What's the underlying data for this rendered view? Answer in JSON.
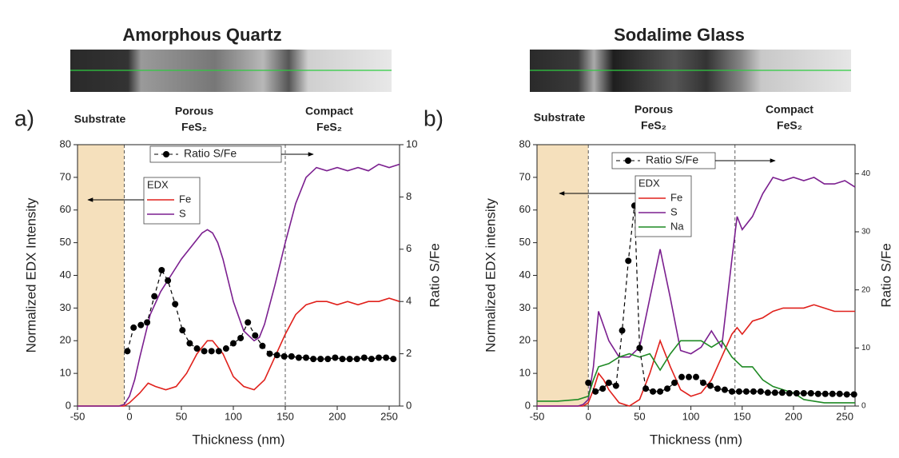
{
  "chart_data": [
    {
      "type": "line",
      "panel_label": "a)",
      "title": "Amorphous Quartz",
      "region_labels": [
        [
          "Substrate"
        ],
        [
          "Porous",
          "FeS₂"
        ],
        [
          "Compact",
          "FeS₂"
        ]
      ],
      "xlabel": "Thickness (nm)",
      "ylabel": "Normalized EDX Intensity",
      "y2label": "Ratio S/Fe",
      "xlim": [
        -50,
        260
      ],
      "ylim": [
        0,
        80
      ],
      "y2lim": [
        0,
        10
      ],
      "xticks": [
        -50,
        0,
        50,
        100,
        150,
        200,
        250
      ],
      "yticks": [
        0,
        10,
        20,
        30,
        40,
        50,
        60,
        70,
        80
      ],
      "y2ticks": [
        0,
        2,
        4,
        6,
        8,
        10
      ],
      "boundaries": [
        -5,
        150
      ],
      "substrate_color": "#f5e0bc",
      "legend_title": "EDX",
      "series": [
        {
          "name": "Fe",
          "color": "#e0201b",
          "x": [
            -50,
            -40,
            -30,
            -20,
            -10,
            -5,
            0,
            10,
            18,
            25,
            35,
            45,
            55,
            65,
            75,
            80,
            90,
            100,
            110,
            120,
            130,
            140,
            150,
            160,
            170,
            180,
            190,
            200,
            210,
            220,
            230,
            240,
            250,
            260
          ],
          "values": [
            0,
            0,
            0,
            0,
            0,
            0,
            1,
            4,
            7,
            6,
            5,
            6,
            10,
            16,
            20,
            20,
            16,
            9,
            6,
            5,
            8,
            15,
            22,
            28,
            31,
            32,
            32,
            31,
            32,
            31,
            32,
            32,
            33,
            32
          ]
        },
        {
          "name": "S",
          "color": "#7b1f8f",
          "x": [
            -50,
            -30,
            -10,
            -5,
            0,
            5,
            10,
            20,
            30,
            40,
            50,
            60,
            70,
            75,
            80,
            85,
            90,
            100,
            110,
            120,
            125,
            130,
            140,
            150,
            160,
            170,
            180,
            190,
            200,
            210,
            220,
            230,
            240,
            250,
            260
          ],
          "values": [
            0,
            0,
            0,
            0.5,
            3,
            8,
            15,
            28,
            35,
            40,
            45,
            49,
            53,
            54,
            53,
            50,
            45,
            32,
            23,
            20,
            21,
            25,
            37,
            50,
            62,
            70,
            73,
            72,
            73,
            72,
            73,
            72,
            74,
            73,
            74
          ]
        },
        {
          "name": "Ratio S/Fe",
          "color": "#000000",
          "axis": "y2",
          "marker": "circle",
          "dashed": true,
          "x": [
            -2,
            4,
            11,
            17,
            24,
            31,
            37,
            44,
            51,
            58,
            65,
            72,
            79,
            86,
            93,
            100,
            107,
            114,
            121,
            128,
            135,
            142,
            149,
            156,
            163,
            170,
            177,
            184,
            191,
            198,
            205,
            212,
            219,
            226,
            233,
            240,
            247,
            254
          ],
          "values": [
            2.1,
            3.0,
            3.1,
            3.2,
            4.2,
            5.2,
            4.8,
            3.9,
            2.9,
            2.4,
            2.2,
            2.1,
            2.1,
            2.1,
            2.2,
            2.4,
            2.6,
            3.2,
            2.7,
            2.3,
            2.0,
            1.95,
            1.9,
            1.9,
            1.85,
            1.85,
            1.8,
            1.8,
            1.8,
            1.85,
            1.8,
            1.8,
            1.8,
            1.85,
            1.8,
            1.85,
            1.85,
            1.8
          ]
        }
      ]
    },
    {
      "type": "line",
      "panel_label": "b)",
      "title": "Sodalime Glass",
      "region_labels": [
        [
          "Substrate"
        ],
        [
          "Porous",
          "FeS₂"
        ],
        [
          "Compact",
          "FeS₂"
        ]
      ],
      "xlabel": "Thickness (nm)",
      "ylabel": "Normalized EDX intensity",
      "y2label": "Ratio S/Fe",
      "xlim": [
        -50,
        260
      ],
      "ylim": [
        0,
        80
      ],
      "y2lim": [
        0,
        45
      ],
      "xticks": [
        -50,
        0,
        50,
        100,
        150,
        200,
        250
      ],
      "yticks": [
        0,
        10,
        20,
        30,
        40,
        50,
        60,
        70,
        80
      ],
      "y2ticks": [
        0,
        10,
        20,
        30,
        40
      ],
      "boundaries": [
        0,
        143
      ],
      "substrate_color": "#f5e0bc",
      "legend_title": "EDX",
      "series": [
        {
          "name": "Fe",
          "color": "#e0201b",
          "x": [
            -50,
            -30,
            -10,
            -5,
            0,
            5,
            10,
            15,
            20,
            30,
            40,
            50,
            60,
            70,
            80,
            90,
            100,
            110,
            120,
            130,
            140,
            145,
            150,
            160,
            170,
            180,
            190,
            200,
            210,
            220,
            230,
            240,
            250,
            260
          ],
          "values": [
            0,
            0,
            0,
            0,
            1,
            5,
            10,
            8,
            5,
            1,
            0,
            2,
            10,
            20,
            12,
            5,
            3,
            4,
            8,
            15,
            22,
            24,
            22,
            26,
            27,
            29,
            30,
            30,
            30,
            31,
            30,
            29,
            29,
            29
          ]
        },
        {
          "name": "S",
          "color": "#7b1f8f",
          "x": [
            -50,
            -30,
            -10,
            -5,
            0,
            5,
            10,
            20,
            30,
            40,
            50,
            60,
            70,
            80,
            90,
            100,
            110,
            120,
            130,
            140,
            145,
            150,
            160,
            170,
            180,
            190,
            200,
            210,
            220,
            230,
            240,
            250,
            260
          ],
          "values": [
            0,
            0,
            0,
            0.5,
            2,
            12,
            29,
            20,
            15,
            15,
            18,
            33,
            48,
            33,
            17,
            16,
            18,
            23,
            18,
            45,
            58,
            54,
            58,
            65,
            70,
            69,
            70,
            69,
            70,
            68,
            68,
            69,
            67
          ]
        },
        {
          "name": "Na",
          "color": "#1f8a24",
          "x": [
            -50,
            -30,
            -10,
            0,
            5,
            10,
            20,
            30,
            40,
            50,
            60,
            70,
            80,
            90,
            100,
            110,
            120,
            130,
            140,
            150,
            160,
            170,
            180,
            190,
            200,
            210,
            220,
            230,
            240,
            250,
            260
          ],
          "values": [
            1.5,
            1.5,
            2,
            3,
            8,
            12,
            13,
            15,
            16,
            15,
            16,
            11,
            16,
            20,
            20,
            20,
            18,
            20,
            15,
            12,
            12,
            8,
            6,
            5,
            4,
            2,
            1.5,
            1,
            1,
            1,
            1
          ]
        },
        {
          "name": "Ratio S/Fe",
          "color": "#000000",
          "axis": "y2",
          "marker": "circle",
          "dashed": true,
          "x": [
            0,
            7,
            14,
            20,
            27,
            33,
            39,
            45,
            50,
            56,
            63,
            70,
            77,
            84,
            91,
            98,
            105,
            112,
            119,
            126,
            133,
            140,
            147,
            154,
            161,
            168,
            175,
            182,
            189,
            196,
            203,
            210,
            217,
            224,
            231,
            238,
            245,
            252,
            259
          ],
          "values": [
            4,
            2.5,
            3,
            4,
            3.5,
            13,
            25,
            34.5,
            10,
            3,
            2.5,
            2.5,
            3,
            4,
            5,
            5,
            5,
            4,
            3.5,
            3,
            2.8,
            2.5,
            2.5,
            2.5,
            2.5,
            2.5,
            2.3,
            2.3,
            2.3,
            2.2,
            2.2,
            2.2,
            2.2,
            2.1,
            2.1,
            2.1,
            2.1,
            2,
            2
          ]
        }
      ]
    }
  ]
}
